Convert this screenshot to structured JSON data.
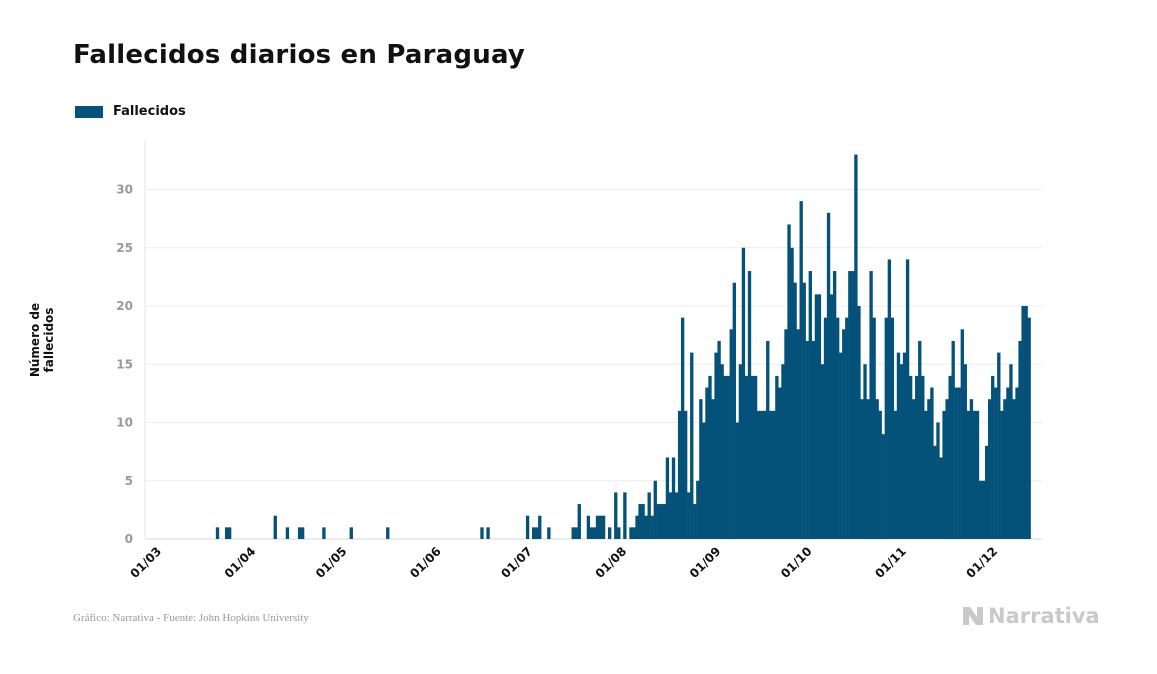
{
  "title": "Fallecidos diarios en Paraguay",
  "legend": {
    "label": "Fallecidos",
    "color": "#04527a"
  },
  "source": "Gráfico: Narrativa - Fuente: John Hopkins University",
  "brand": {
    "name": "Narrativa",
    "icon": "n-logo-icon",
    "color": "#c9c9c9"
  },
  "chart_data": {
    "type": "bar",
    "title": "Fallecidos diarios en Paraguay",
    "xlabel": "",
    "ylabel": "Número de fallecidos",
    "ylim": [
      0,
      35
    ],
    "yticks": [
      0,
      5,
      10,
      15,
      20,
      25,
      30
    ],
    "grid": true,
    "legend_position": "top-left",
    "start_date": "01/03",
    "xtick_labels": [
      "01/03",
      "01/04",
      "01/05",
      "01/06",
      "01/07",
      "01/08",
      "01/09",
      "01/10",
      "01/11",
      "01/12"
    ],
    "xtick_index": [
      0,
      31,
      61,
      92,
      122,
      153,
      184,
      214,
      245,
      275
    ],
    "series": [
      {
        "name": "Fallecidos",
        "values": [
          0,
          0,
          0,
          0,
          0,
          0,
          0,
          0,
          0,
          0,
          0,
          0,
          0,
          0,
          0,
          0,
          0,
          0,
          0,
          0,
          0,
          1,
          0,
          0,
          1,
          1,
          0,
          0,
          0,
          0,
          0,
          0,
          0,
          0,
          0,
          0,
          0,
          0,
          0,
          0,
          2,
          0,
          0,
          0,
          1,
          0,
          0,
          0,
          1,
          1,
          0,
          0,
          0,
          0,
          0,
          0,
          1,
          0,
          0,
          0,
          0,
          0,
          0,
          0,
          0,
          1,
          0,
          0,
          0,
          0,
          0,
          0,
          0,
          0,
          0,
          0,
          0,
          1,
          0,
          0,
          0,
          0,
          0,
          0,
          0,
          0,
          0,
          0,
          0,
          0,
          0,
          0,
          0,
          0,
          0,
          0,
          0,
          0,
          0,
          0,
          0,
          0,
          0,
          0,
          0,
          0,
          0,
          0,
          1,
          0,
          1,
          0,
          0,
          0,
          0,
          0,
          0,
          0,
          0,
          0,
          0,
          0,
          0,
          2,
          0,
          1,
          1,
          2,
          0,
          0,
          1,
          0,
          0,
          0,
          0,
          0,
          0,
          0,
          1,
          1,
          3,
          0,
          0,
          2,
          1,
          1,
          2,
          2,
          2,
          0,
          1,
          0,
          4,
          1,
          0,
          4,
          0,
          1,
          1,
          2,
          3,
          3,
          2,
          4,
          2,
          5,
          3,
          3,
          3,
          7,
          4,
          7,
          4,
          11,
          19,
          11,
          4,
          16,
          3,
          5,
          12,
          10,
          13,
          14,
          12,
          16,
          17,
          15,
          14,
          14,
          18,
          22,
          10,
          15,
          25,
          14,
          23,
          14,
          14,
          11,
          11,
          11,
          17,
          11,
          11,
          14,
          13,
          15,
          18,
          27,
          25,
          22,
          18,
          29,
          22,
          17,
          23,
          17,
          21,
          21,
          15,
          19,
          28,
          21,
          23,
          19,
          16,
          18,
          19,
          23,
          23,
          33,
          20,
          12,
          15,
          12,
          23,
          19,
          12,
          11,
          9,
          19,
          24,
          19,
          11,
          16,
          15,
          16,
          24,
          14,
          12,
          14,
          17,
          14,
          11,
          12,
          13,
          8,
          10,
          7,
          11,
          12,
          14,
          17,
          13,
          13,
          18,
          15,
          11,
          12,
          11,
          11,
          5,
          5,
          8,
          12,
          14,
          13,
          16,
          11,
          12,
          13,
          15,
          12,
          13,
          17,
          20,
          20,
          19
        ]
      }
    ]
  }
}
